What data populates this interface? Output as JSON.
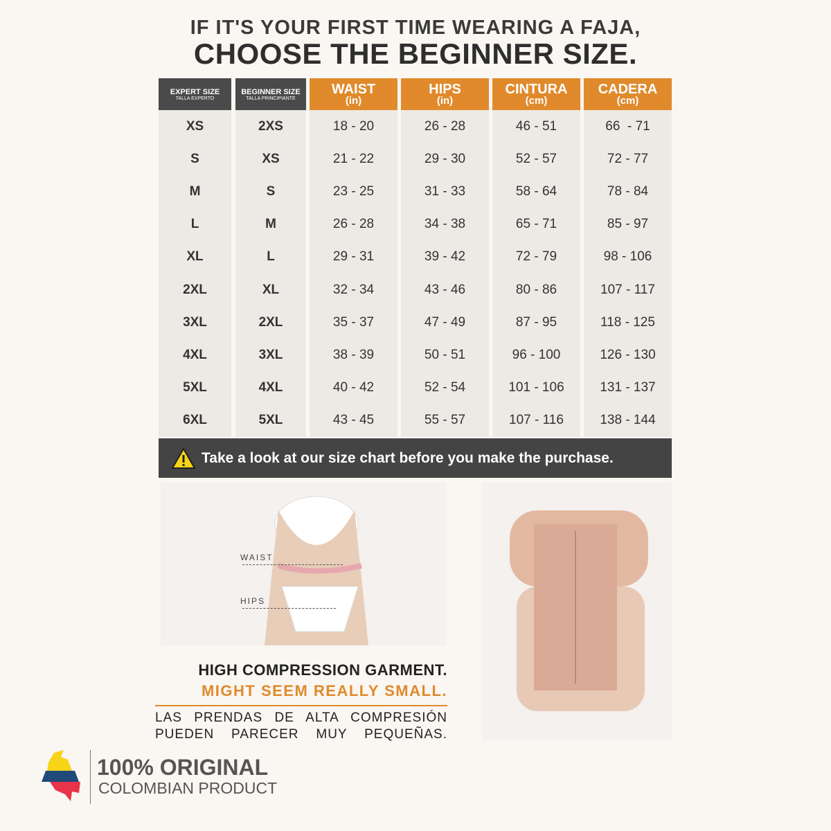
{
  "heading": {
    "line1": "IF IT'S YOUR FIRST TIME WEARING A FAJA,",
    "line2": "CHOOSE THE BEGINNER SIZE."
  },
  "columns": [
    {
      "title": "EXPERT SIZE",
      "sub": "TALLA EXPERTO",
      "style": "dark"
    },
    {
      "title": "BEGINNER SIZE",
      "sub": "TALLA PRINCIPIANTE",
      "style": "dark"
    },
    {
      "title": "WAIST",
      "sub": "(in)",
      "style": "orange"
    },
    {
      "title": "HIPS",
      "sub": "(in)",
      "style": "orange"
    },
    {
      "title": "CINTURA",
      "sub": "(cm)",
      "style": "orange"
    },
    {
      "title": "CADERA",
      "sub": "(cm)",
      "style": "orange"
    }
  ],
  "rows": [
    [
      "XS",
      "2XS",
      "18 - 20",
      "26 - 28",
      "46 - 51",
      "66  - 71"
    ],
    [
      "S",
      "XS",
      "21 - 22",
      "29 - 30",
      "52 - 57",
      "72 - 77"
    ],
    [
      "M",
      "S",
      "23 - 25",
      "31 - 33",
      "58 - 64",
      "78 - 84"
    ],
    [
      "L",
      "M",
      "26 - 28",
      "34 - 38",
      "65 - 71",
      "85 - 97"
    ],
    [
      "XL",
      "L",
      "29 - 31",
      "39 - 42",
      "72 - 79",
      "98 - 106"
    ],
    [
      "2XL",
      "XL",
      "32 - 34",
      "43 - 46",
      "80 - 86",
      "107 - 117"
    ],
    [
      "3XL",
      "2XL",
      "35 - 37",
      "47 - 49",
      "87 - 95",
      "118 - 125"
    ],
    [
      "4XL",
      "3XL",
      "38 - 39",
      "50 - 51",
      "96 - 100",
      "126 - 130"
    ],
    [
      "5XL",
      "4XL",
      "40 - 42",
      "52 - 54",
      "101 - 106",
      "131 - 137"
    ],
    [
      "6XL",
      "5XL",
      "43 - 45",
      "55 - 57",
      "107 - 116",
      "138 - 144"
    ]
  ],
  "warning": {
    "icon": "warning-triangle-icon",
    "text": "Take a look at our size chart before you make the purchase."
  },
  "photo_labels": {
    "waist": "WAIST",
    "hips": "HIPS"
  },
  "notice": {
    "line1": "HIGH COMPRESSION GARMENT.",
    "line2": "MIGHT SEEM REALLY SMALL.",
    "line3": "LAS PRENDAS DE ALTA COMPRESIÓN",
    "line4": "PUEDEN PARECER MUY PEQUEÑAS."
  },
  "badge": {
    "title": "100% ORIGINAL",
    "subtitle": "COLOMBIAN PRODUCT"
  },
  "colors": {
    "accent": "#e08a2c",
    "dark_header": "#4a4a4a",
    "flag_yellow": "#f7d417",
    "flag_blue": "#1f4a7a",
    "flag_red": "#e8334a"
  }
}
